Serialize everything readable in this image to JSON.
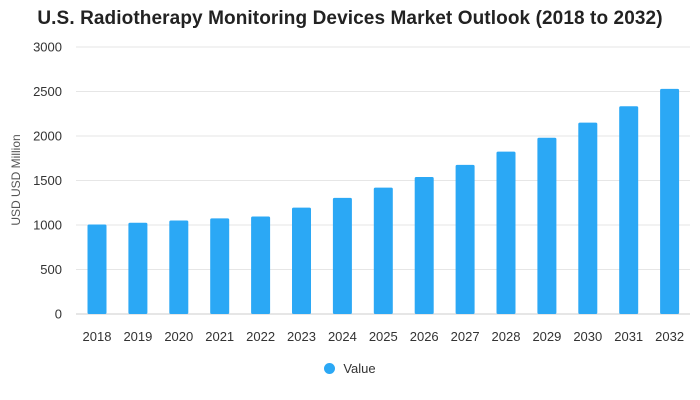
{
  "chart_data": {
    "type": "bar",
    "title": "U.S. Radiotherapy Monitoring Devices Market Outlook (2018 to 2032)",
    "xlabel": "",
    "ylabel": "USD USD Million",
    "ylim": [
      0,
      3000
    ],
    "yticks": [
      0,
      500,
      1000,
      1500,
      2000,
      2500,
      3000
    ],
    "categories": [
      "2018",
      "2019",
      "2020",
      "2021",
      "2022",
      "2023",
      "2024",
      "2025",
      "2026",
      "2027",
      "2028",
      "2029",
      "2030",
      "2031",
      "2032"
    ],
    "series": [
      {
        "name": "Value",
        "color": "#2BA8F5",
        "values": [
          1005,
          1025,
          1050,
          1075,
          1095,
          1195,
          1305,
          1420,
          1540,
          1675,
          1825,
          1980,
          2150,
          2335,
          2530
        ]
      }
    ],
    "grid": true,
    "legend_position": "bottom-center"
  }
}
